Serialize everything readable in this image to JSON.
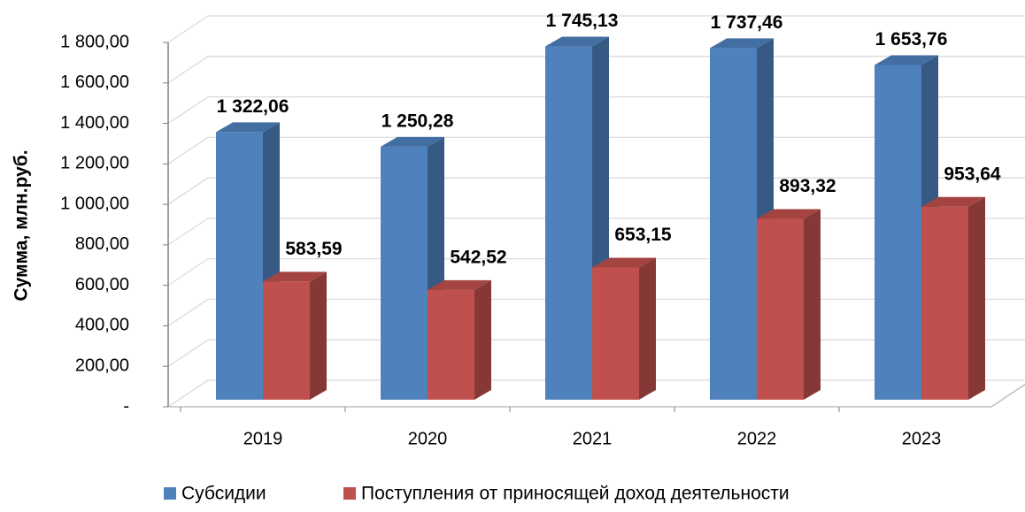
{
  "chart_data": {
    "type": "bar3d",
    "y_axis_label": "Сумма, млн.руб.",
    "categories": [
      "2019",
      "2020",
      "2021",
      "2022",
      "2023"
    ],
    "series": [
      {
        "name": "Субсидии",
        "color": "#4f81bd",
        "values": [
          1322.06,
          1250.28,
          1745.13,
          1737.46,
          1653.76
        ],
        "value_labels": [
          "1 322,06",
          "1 250,28",
          "1 745,13",
          "1 737,46",
          "1 653,76"
        ]
      },
      {
        "name": "Поступления от приносящей доход деятельности",
        "color": "#c0504d",
        "values": [
          583.59,
          542.52,
          653.15,
          893.32,
          953.64
        ],
        "value_labels": [
          "583,59",
          "542,52",
          "653,15",
          "893,32",
          "953,64"
        ]
      }
    ],
    "ylim": [
      0,
      1800
    ],
    "yticks": [
      {
        "value": 0,
        "label": "-"
      },
      {
        "value": 200,
        "label": "200,00"
      },
      {
        "value": 400,
        "label": "400,00"
      },
      {
        "value": 600,
        "label": "600,00"
      },
      {
        "value": 800,
        "label": "800,00"
      },
      {
        "value": 1000,
        "label": "1 000,00"
      },
      {
        "value": 1200,
        "label": "1 200,00"
      },
      {
        "value": 1400,
        "label": "1 400,00"
      },
      {
        "value": 1600,
        "label": "1 600,00"
      },
      {
        "value": 1800,
        "label": "1 800,00"
      }
    ],
    "grid": true
  }
}
